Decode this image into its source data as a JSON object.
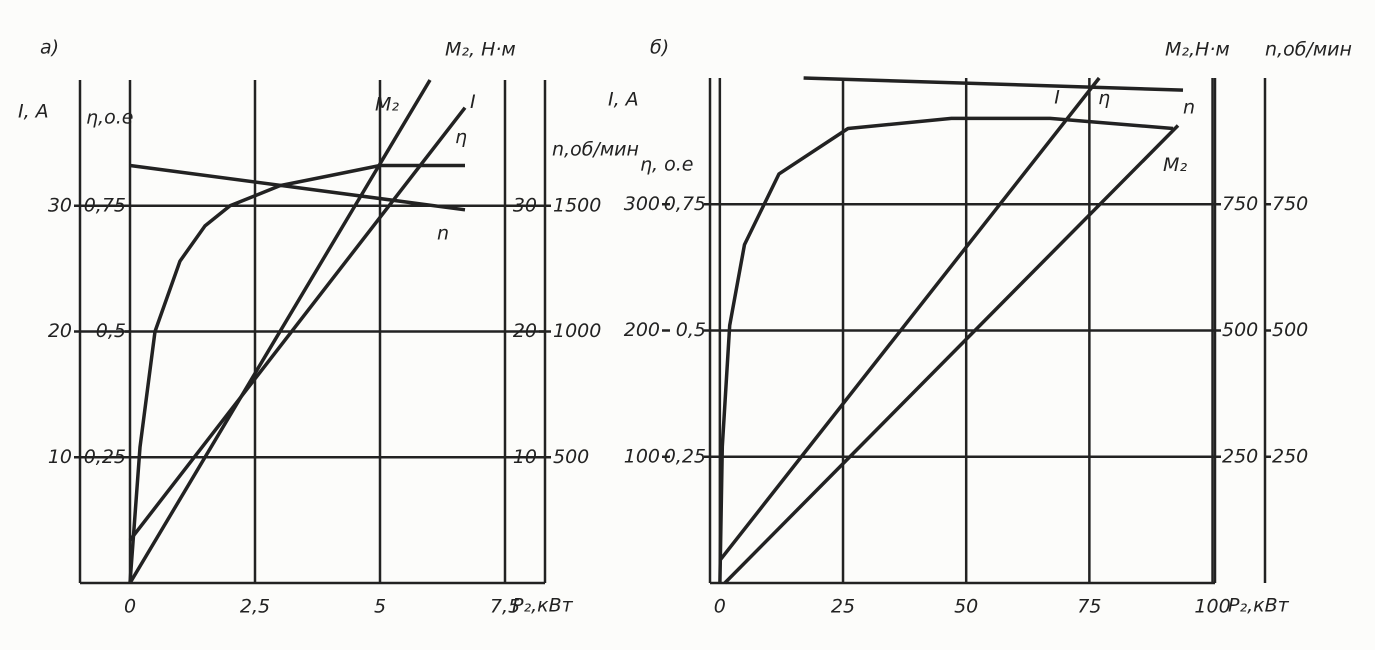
{
  "chart_data": [
    {
      "type": "line",
      "panel_label": "а)",
      "xlabel": "P₂,кВт",
      "xlim": [
        -1,
        8.3
      ],
      "xticks": [
        0,
        {
          "value": 2.5,
          "label": "2,5"
        },
        5,
        {
          "value": 7.5,
          "label": "7,5"
        }
      ],
      "ylabel": "I, A",
      "ylim": [
        0,
        40
      ],
      "yticks": [
        10,
        20,
        30
      ],
      "y2label": "η,о.е",
      "y2lim": [
        0,
        1
      ],
      "y2ticks": [
        {
          "value": 0.25,
          "label": "0,25"
        },
        {
          "value": 0.5,
          "label": "0,5"
        },
        {
          "value": 0.75,
          "label": "0,75"
        }
      ],
      "y3label": "M₂, Н·м",
      "y3lim": [
        0,
        40
      ],
      "y3ticks": [
        10,
        20,
        30
      ],
      "y4label": "n,об/мин",
      "y4lim": [
        0,
        2000
      ],
      "y4ticks": [
        500,
        1000,
        1500
      ],
      "grid": true,
      "series": [
        {
          "name": "M₂",
          "axis": "y3",
          "color": "#222",
          "x": [
            0,
            6.0
          ],
          "values": [
            0,
            40
          ]
        },
        {
          "name": "I",
          "axis": "y",
          "color": "#222",
          "x": [
            0,
            6.7
          ],
          "values": [
            3.4,
            37.8
          ]
        },
        {
          "name": "η",
          "axis": "y2",
          "color": "#222",
          "x": [
            0,
            0.2,
            0.5,
            1,
            1.5,
            2,
            2.5,
            3,
            4,
            5,
            6.7
          ],
          "values": [
            0,
            0.27,
            0.5,
            0.64,
            0.71,
            0.75,
            0.77,
            0.79,
            0.81,
            0.83,
            0.83
          ]
        },
        {
          "name": "n",
          "axis": "y4",
          "color": "#222",
          "x": [
            0,
            6.7
          ],
          "values": [
            1660,
            1484
          ]
        }
      ]
    },
    {
      "type": "line",
      "panel_label": "б)",
      "xlabel": "P₂,кВт",
      "xlim": [
        -2,
        100.5
      ],
      "xticks": [
        0,
        25,
        50,
        75,
        100
      ],
      "ylabel": "I, A",
      "ylim": [
        0,
        400
      ],
      "yticks": [
        100,
        200,
        300
      ],
      "y2label": "η, о.е",
      "y2lim": [
        0,
        1
      ],
      "y2ticks": [
        {
          "value": 0.25,
          "label": "0,25"
        },
        {
          "value": 0.5,
          "label": "0,5"
        },
        {
          "value": 0.75,
          "label": "0,75"
        }
      ],
      "y3label": "M₂,Н·м",
      "y3lim": [
        0,
        1000
      ],
      "y3ticks": [
        250,
        500,
        750
      ],
      "y4label": "n,об/мин",
      "y4lim": [
        0,
        1000
      ],
      "y4ticks": [
        250,
        500,
        750
      ],
      "grid": true,
      "series": [
        {
          "name": "I",
          "axis": "y",
          "color": "#222",
          "x": [
            0,
            77
          ],
          "values": [
            18,
            400
          ]
        },
        {
          "name": "η",
          "axis": "y2",
          "color": "#222",
          "x": [
            0,
            0.5,
            2,
            5,
            12,
            26,
            47,
            67,
            92
          ],
          "values": [
            0,
            0.27,
            0.51,
            0.67,
            0.81,
            0.9,
            0.92,
            0.92,
            0.9
          ]
        },
        {
          "name": "n",
          "axis": "y4",
          "color": "#222",
          "x": [
            17,
            94
          ],
          "values": [
            1000,
            976
          ]
        },
        {
          "name": "M₂",
          "axis": "y3",
          "color": "#222",
          "x": [
            1,
            93
          ],
          "values": [
            0,
            906
          ]
        }
      ]
    }
  ]
}
